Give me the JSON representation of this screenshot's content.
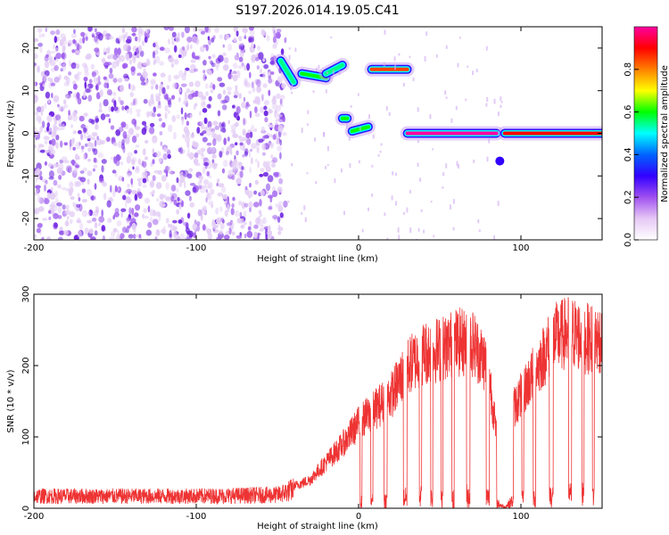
{
  "title": "S197.2026.014.19.05.C41",
  "chart_data": [
    {
      "type": "heatmap",
      "name": "spectrogram",
      "xlabel": "Height of straight line (km)",
      "ylabel": "Frequency (Hz)",
      "xlim": [
        -200,
        150
      ],
      "ylim": [
        -25,
        25
      ],
      "xticks": [
        -200,
        -100,
        0,
        100
      ],
      "yticks": [
        -20,
        -10,
        0,
        10,
        20
      ],
      "colorbar": {
        "label": "Normalized spectral amplitude",
        "range": [
          0,
          1
        ],
        "ticks": [
          0.0,
          0.2,
          0.4,
          0.6,
          0.8
        ],
        "colors": [
          "#ffffff",
          "#e6c8f5",
          "#a050f0",
          "#3200ff",
          "#0064ff",
          "#00ffff",
          "#00ff00",
          "#ffff00",
          "#ff8000",
          "#ff0000",
          "#ff00a0"
        ]
      },
      "features": [
        {
          "kind": "noise",
          "x_range": [
            -200,
            -45
          ],
          "freq_range": [
            -25,
            25
          ],
          "amplitude": 0.15
        },
        {
          "kind": "segment",
          "x": [
            -48,
            -40
          ],
          "freq": [
            17,
            12
          ],
          "amplitude": 0.55
        },
        {
          "kind": "segment",
          "x": [
            -35,
            -20
          ],
          "freq": [
            14,
            13
          ],
          "amplitude": 0.6
        },
        {
          "kind": "segment",
          "x": [
            -20,
            -10
          ],
          "freq": [
            14,
            16
          ],
          "amplitude": 0.55
        },
        {
          "kind": "segment",
          "x": [
            -10,
            -7
          ],
          "freq": [
            3.5,
            3.5
          ],
          "amplitude": 0.6
        },
        {
          "kind": "segment",
          "x": [
            -4,
            6
          ],
          "freq": [
            0.5,
            1.5
          ],
          "amplitude": 0.6
        },
        {
          "kind": "segment",
          "x": [
            8,
            30
          ],
          "freq": [
            15,
            15
          ],
          "amplitude": 0.85
        },
        {
          "kind": "segment",
          "x": [
            30,
            85
          ],
          "freq": [
            0,
            0
          ],
          "amplitude": 1.0
        },
        {
          "kind": "segment",
          "x": [
            90,
            150
          ],
          "freq": [
            0,
            0
          ],
          "amplitude": 0.9
        },
        {
          "kind": "spot",
          "x": [
            87,
            87
          ],
          "freq": [
            -6.5,
            -6.5
          ],
          "amplitude": 0.3
        }
      ]
    },
    {
      "type": "line",
      "name": "snr",
      "xlabel": "Height of straight line (km)",
      "ylabel": "SNR (10 * v/v)",
      "xlim": [
        -200,
        150
      ],
      "ylim": [
        0,
        300
      ],
      "xticks": [
        -200,
        -100,
        0,
        100
      ],
      "yticks": [
        0,
        100,
        200,
        300
      ],
      "color": "#ee3333",
      "series": [
        {
          "name": "SNR",
          "x": [
            -200,
            -150,
            -100,
            -50,
            -30,
            -10,
            0,
            10,
            20,
            30,
            40,
            50,
            60,
            70,
            80,
            85,
            90,
            95,
            100,
            110,
            120,
            130,
            140,
            150
          ],
          "values": [
            20,
            20,
            20,
            22,
            40,
            90,
            120,
            140,
            160,
            200,
            220,
            225,
            235,
            235,
            200,
            100,
            20,
            140,
            160,
            200,
            240,
            250,
            240,
            240
          ]
        }
      ]
    }
  ]
}
